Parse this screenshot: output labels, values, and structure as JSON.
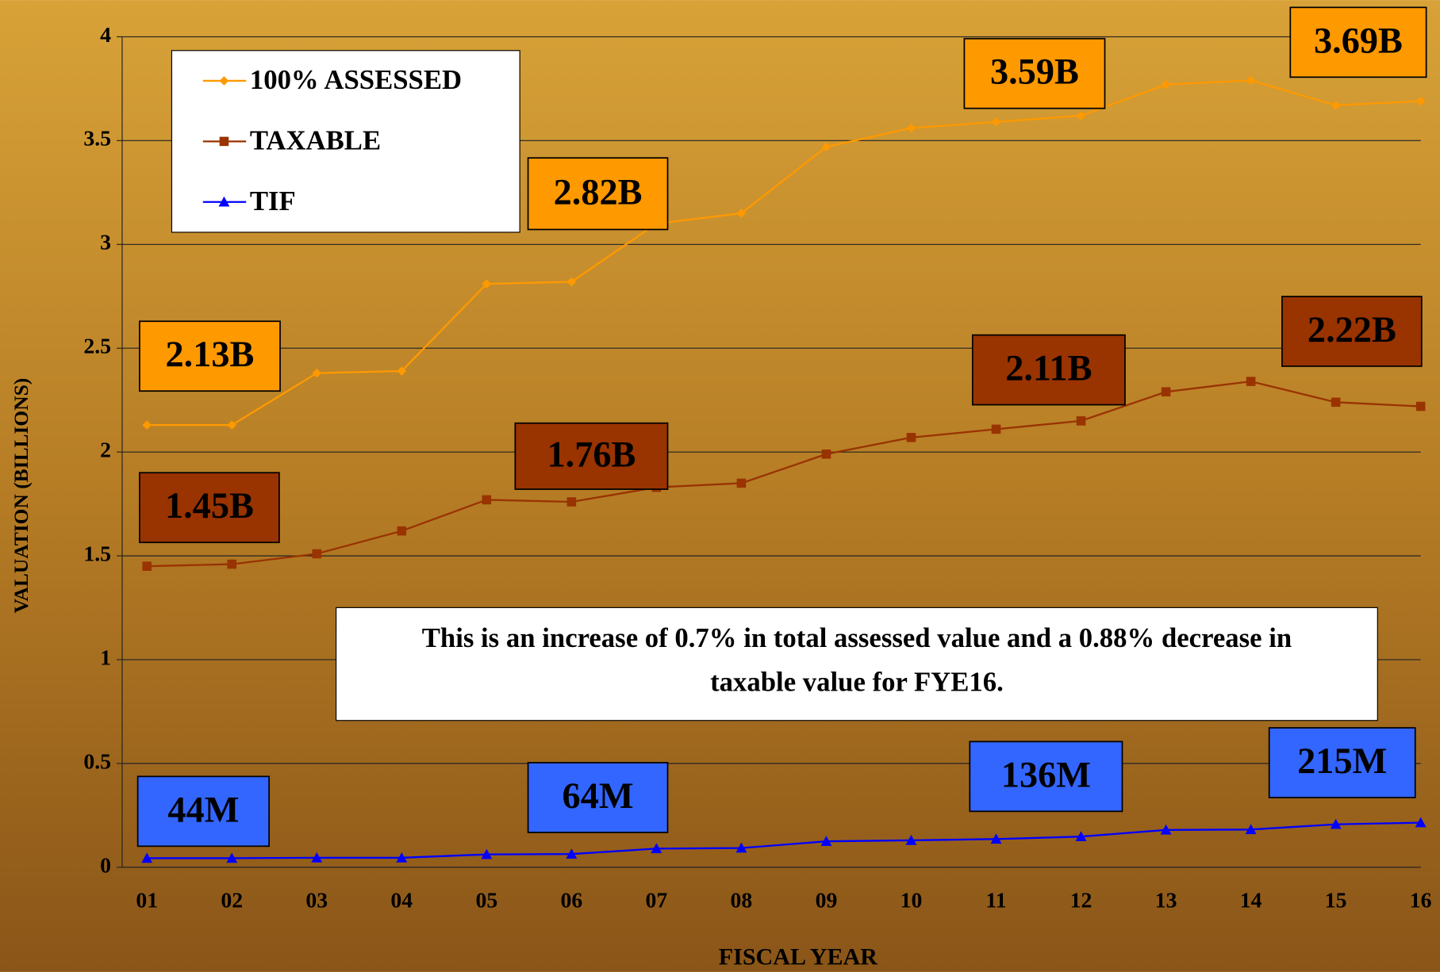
{
  "chart_data": {
    "type": "line",
    "x_label": "FISCAL YEAR",
    "y_label": "VALUATION (BILLIONS)",
    "categories": [
      "01",
      "02",
      "03",
      "04",
      "05",
      "06",
      "07",
      "08",
      "09",
      "10",
      "11",
      "12",
      "13",
      "14",
      "15",
      "16"
    ],
    "series": [
      {
        "name": "100% ASSESSED",
        "color": "#ff9900",
        "marker": "diamond",
        "values": [
          2.13,
          2.13,
          2.38,
          2.39,
          2.81,
          2.82,
          3.1,
          3.15,
          3.47,
          3.56,
          3.59,
          3.62,
          3.77,
          3.79,
          3.67,
          3.69
        ],
        "value_labels": [
          "2.13B",
          null,
          null,
          null,
          null,
          "2.82B",
          null,
          null,
          null,
          null,
          "3.59B",
          null,
          null,
          null,
          null,
          "3.69B"
        ]
      },
      {
        "name": "TAXABLE",
        "color": "#993300",
        "marker": "square",
        "values": [
          1.45,
          1.46,
          1.51,
          1.62,
          1.77,
          1.76,
          1.83,
          1.85,
          1.99,
          2.07,
          2.11,
          2.15,
          2.29,
          2.34,
          2.24,
          2.22
        ],
        "value_labels": [
          "1.45B",
          null,
          null,
          null,
          null,
          "1.76B",
          null,
          null,
          null,
          null,
          "2.11B",
          null,
          null,
          null,
          null,
          "2.22B"
        ]
      },
      {
        "name": "TIF",
        "color": "#0000ff",
        "marker": "triangle",
        "values": [
          0.044,
          0.044,
          0.046,
          0.046,
          0.062,
          0.064,
          0.09,
          0.093,
          0.125,
          0.13,
          0.136,
          0.148,
          0.18,
          0.182,
          0.207,
          0.215
        ],
        "value_labels": [
          "44M",
          null,
          null,
          null,
          null,
          "64M",
          null,
          null,
          null,
          null,
          "136M",
          null,
          null,
          null,
          null,
          "215M"
        ]
      }
    ],
    "label_box_colors": [
      "#ff9900",
      "#993300",
      "#3366ff"
    ],
    "ylim": [
      0,
      4
    ],
    "yticks": [
      0,
      0.5,
      1,
      1.5,
      2,
      2.5,
      3,
      3.5,
      4
    ],
    "grid": true,
    "legend": "upper left",
    "annotation": "This is an increase of 0.7% in total assessed value and a 0.88% decrease in taxable value for FYE16."
  }
}
